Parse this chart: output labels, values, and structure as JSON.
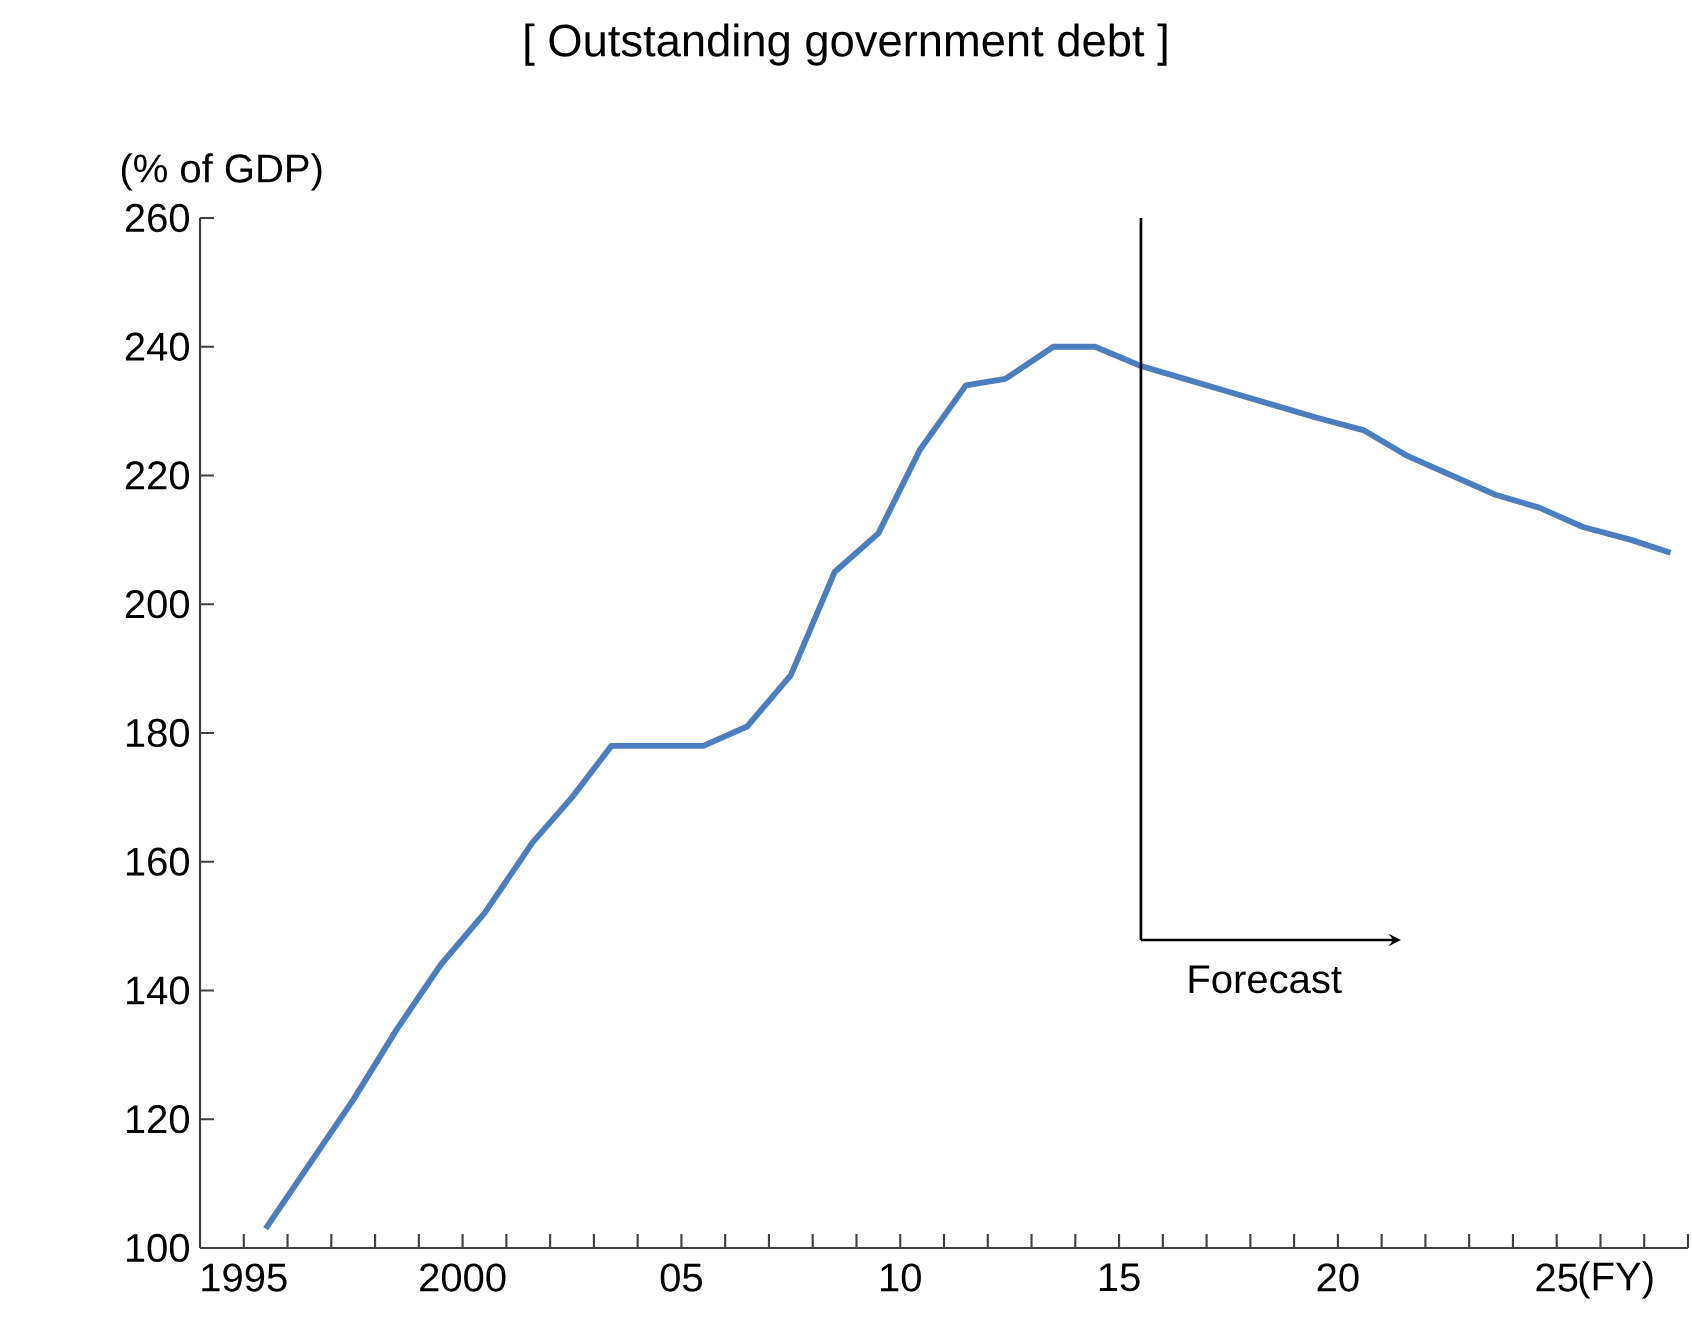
{
  "chart_data": {
    "type": "line",
    "title": "[ Outstanding government debt ]",
    "ylabel": "(% of GDP)",
    "x": [
      1995.5,
      1996.5,
      1997.5,
      1998.5,
      1999.5,
      2000.5,
      2001.6,
      2002.5,
      2003.4,
      2004.6,
      2005.5,
      2006.5,
      2007.5,
      2008.5,
      2009.5,
      2010.45,
      2011.5,
      2012.4,
      2013.5,
      2014.45,
      2015.5,
      2016.5,
      2017.5,
      2018.5,
      2019.5,
      2020.6,
      2021.6,
      2022.6,
      2023.6,
      2024.6,
      2025.6,
      2026.7,
      2027.6
    ],
    "series": [
      {
        "color": "#4a7ebf",
        "values": [
          103,
          113,
          123,
          134,
          144,
          152,
          163,
          170,
          178,
          178,
          178,
          181,
          189,
          205,
          211,
          224,
          234,
          235,
          240,
          240,
          237,
          235,
          233,
          231,
          229,
          227,
          223,
          220,
          217,
          215,
          212,
          210,
          208
        ]
      }
    ],
    "xlim": [
      1994,
      2028
    ],
    "xticks": [
      {
        "value": 1995,
        "label": "1995"
      },
      {
        "value": 1996,
        "label": null
      },
      {
        "value": 1997,
        "label": null
      },
      {
        "value": 1998,
        "label": null
      },
      {
        "value": 1999,
        "label": null
      },
      {
        "value": 2000,
        "label": "2000"
      },
      {
        "value": 2001,
        "label": null
      },
      {
        "value": 2002,
        "label": null
      },
      {
        "value": 2003,
        "label": null
      },
      {
        "value": 2004,
        "label": null
      },
      {
        "value": 2005,
        "label": "05"
      },
      {
        "value": 2006,
        "label": null
      },
      {
        "value": 2007,
        "label": null
      },
      {
        "value": 2008,
        "label": null
      },
      {
        "value": 2009,
        "label": null
      },
      {
        "value": 2010,
        "label": "10"
      },
      {
        "value": 2011,
        "label": null
      },
      {
        "value": 2012,
        "label": null
      },
      {
        "value": 2013,
        "label": null
      },
      {
        "value": 2014,
        "label": null
      },
      {
        "value": 2015,
        "label": "15"
      },
      {
        "value": 2016,
        "label": null
      },
      {
        "value": 2017,
        "label": null
      },
      {
        "value": 2018,
        "label": null
      },
      {
        "value": 2019,
        "label": null
      },
      {
        "value": 2020,
        "label": "20"
      },
      {
        "value": 2021,
        "label": null
      },
      {
        "value": 2022,
        "label": null
      },
      {
        "value": 2023,
        "label": null
      },
      {
        "value": 2024,
        "label": null
      },
      {
        "value": 2025,
        "label": "25"
      },
      {
        "value": 2026,
        "label": null
      },
      {
        "value": 2027,
        "label": null
      },
      {
        "value": 2028,
        "label": null
      }
    ],
    "ylim": [
      100,
      260
    ],
    "yticks": [
      100,
      120,
      140,
      160,
      180,
      200,
      220,
      240,
      260
    ],
    "xlabel": "(FY)",
    "ref_lines": [
      {
        "axis": "x",
        "value": 2015.5,
        "label": "Forecast",
        "color": "#000000"
      }
    ],
    "grid": false,
    "marker": "none",
    "line_style": "solid"
  }
}
